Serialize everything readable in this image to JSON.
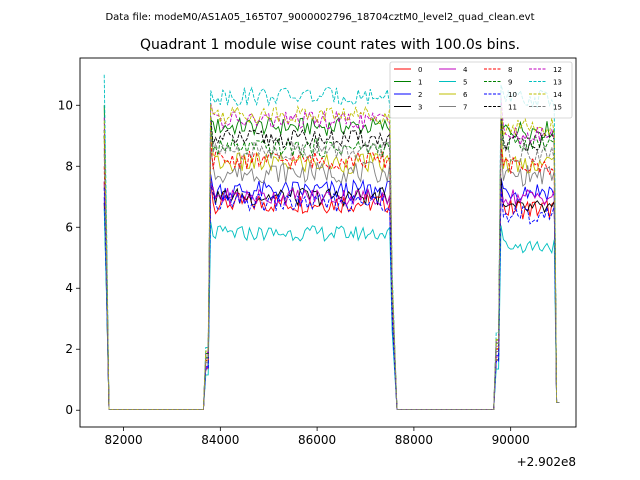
{
  "header": {
    "data_file": "Data file: modeM0/AS1A05_165T07_9000002796_18704cztM0_level2_quad_clean.evt"
  },
  "chart_data": {
    "type": "line",
    "title": "Quadrant 1 module wise count rates with 100.0s bins.",
    "xlabel": "",
    "ylabel": "",
    "x_offset_label": "+2.902e8",
    "xlim": [
      81100,
      91350
    ],
    "ylim": [
      -0.55,
      11.55
    ],
    "grid": false,
    "legend_position": "top-right",
    "xticks": [
      {
        "value": 82000,
        "label": "82000"
      },
      {
        "value": 84000,
        "label": "84000"
      },
      {
        "value": 86000,
        "label": "86000"
      },
      {
        "value": 88000,
        "label": "88000"
      },
      {
        "value": 90000,
        "label": "90000"
      }
    ],
    "yticks": [
      {
        "value": 0,
        "label": "0"
      },
      {
        "value": 2,
        "label": "2"
      },
      {
        "value": 4,
        "label": "4"
      },
      {
        "value": 6,
        "label": "6"
      },
      {
        "value": 8,
        "label": "8"
      },
      {
        "value": 10,
        "label": "10"
      }
    ],
    "segments_x": [
      {
        "start": 81600,
        "end": 81700,
        "step": 50
      },
      {
        "start": 81750,
        "end": 83650,
        "step": 100
      },
      {
        "start": 83700,
        "end": 87550,
        "step": 50
      },
      {
        "start": 87650,
        "end": 89650,
        "step": 100
      },
      {
        "start": 89700,
        "end": 91000,
        "step": 50
      }
    ],
    "series": [
      {
        "name": "0",
        "color": "#ff0000",
        "dashed": false,
        "start": 7.5,
        "level_a": 6.8,
        "level_b": 6.6,
        "noise": 0.35,
        "spike": 7.6
      },
      {
        "name": "1",
        "color": "#008000",
        "dashed": false,
        "start": 10.0,
        "level_a": 9.3,
        "level_b": 9.2,
        "noise": 0.3,
        "spike": 9.6
      },
      {
        "name": "2",
        "color": "#0000ff",
        "dashed": false,
        "start": 7.0,
        "level_a": 7.2,
        "level_b": 7.2,
        "noise": 0.35,
        "spike": 7.6
      },
      {
        "name": "3",
        "color": "#000000",
        "dashed": false,
        "start": 6.8,
        "level_a": 7.0,
        "level_b": 6.6,
        "noise": 0.3,
        "spike": 7.5
      },
      {
        "name": "4",
        "color": "#bf00bf",
        "dashed": false,
        "start": 7.5,
        "level_a": 7.0,
        "level_b": 7.0,
        "noise": 0.3,
        "spike": 7.4
      },
      {
        "name": "5",
        "color": "#00bfbf",
        "dashed": false,
        "start": 6.6,
        "level_a": 5.8,
        "level_b": 5.4,
        "noise": 0.25,
        "spike": 6.1
      },
      {
        "name": "6",
        "color": "#bfbf00",
        "dashed": false,
        "start": 9.0,
        "level_a": 8.1,
        "level_b": 8.1,
        "noise": 0.35,
        "spike": 9.3
      },
      {
        "name": "7",
        "color": "#808080",
        "dashed": false,
        "start": 8.6,
        "level_a": 7.8,
        "level_b": 7.7,
        "noise": 0.35,
        "spike": 8.5
      },
      {
        "name": "8",
        "color": "#ff0000",
        "dashed": true,
        "start": 8.0,
        "level_a": 8.2,
        "level_b": 8.0,
        "noise": 0.3,
        "spike": 8.8
      },
      {
        "name": "9",
        "color": "#008000",
        "dashed": true,
        "start": 9.0,
        "level_a": 8.6,
        "level_b": 8.8,
        "noise": 0.3,
        "spike": 9.5
      },
      {
        "name": "10",
        "color": "#0000ff",
        "dashed": true,
        "start": 7.3,
        "level_a": 6.8,
        "level_b": 6.4,
        "noise": 0.3,
        "spike": 7.4
      },
      {
        "name": "11",
        "color": "#000000",
        "dashed": true,
        "start": 9.2,
        "level_a": 8.9,
        "level_b": 8.8,
        "noise": 0.3,
        "spike": 9.5
      },
      {
        "name": "12",
        "color": "#bf00bf",
        "dashed": true,
        "start": 9.6,
        "level_a": 9.5,
        "level_b": 9.0,
        "noise": 0.3,
        "spike": 10.2
      },
      {
        "name": "13",
        "color": "#00bfbf",
        "dashed": true,
        "start": 11.0,
        "level_a": 10.3,
        "level_b": 10.2,
        "noise": 0.3,
        "spike": 10.6
      },
      {
        "name": "14",
        "color": "#bfbf00",
        "dashed": true,
        "start": 9.5,
        "level_a": 9.7,
        "level_b": 9.3,
        "noise": 0.3,
        "spike": 10.0
      },
      {
        "name": "15",
        "color": "#808080",
        "dashed": true,
        "start": 8.4,
        "level_a": 8.5,
        "level_b": 8.4,
        "noise": 0.3,
        "spike": 9.0
      }
    ]
  }
}
